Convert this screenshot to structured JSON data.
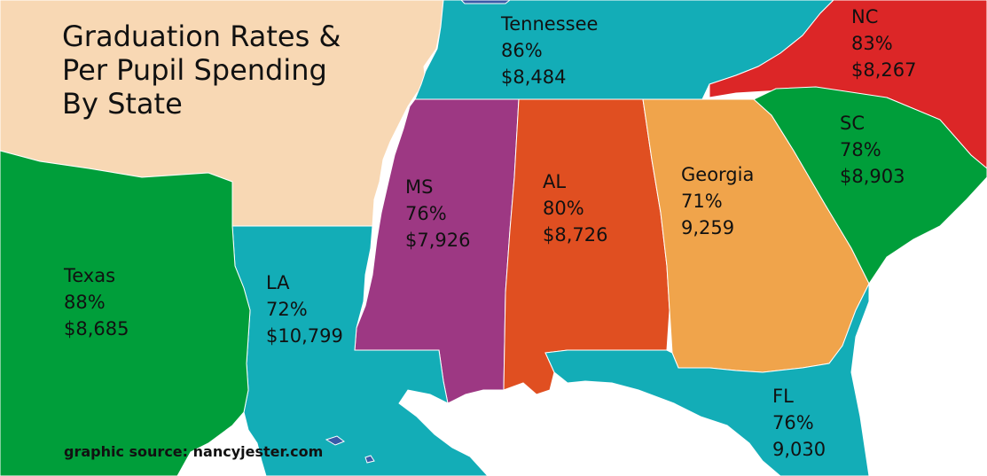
{
  "title": {
    "line1": "Graduation Rates &",
    "line2": "Per Pupil Spending",
    "line3": "By State"
  },
  "source": "graphic source: nancyjester.com",
  "colors": {
    "background": "#ffffff",
    "texas": "#009e3a",
    "louisiana": "#13adb7",
    "mississippi": "#9d3883",
    "alabama": "#e04f21",
    "georgia": "#f0a44b",
    "florida": "#13adb7",
    "tennessee": "#13adb7",
    "north_carolina": "#dc2627",
    "south_carolina": "#009e3a",
    "arkansas_region": "#f8d8b4",
    "lake": "#3a5aa8"
  },
  "states": {
    "texas": {
      "name": "Texas",
      "rate": "88%",
      "spending": "$8,685"
    },
    "louisiana": {
      "name": "LA",
      "rate": "72%",
      "spending": "$10,799"
    },
    "mississippi": {
      "name": "MS",
      "rate": "76%",
      "spending": "$7,926"
    },
    "alabama": {
      "name": "AL",
      "rate": "80%",
      "spending": "$8,726"
    },
    "georgia": {
      "name": "Georgia",
      "rate": "71%",
      "spending": "9,259"
    },
    "florida": {
      "name": "FL",
      "rate": "76%",
      "spending": "9,030"
    },
    "tennessee": {
      "name": "Tennessee",
      "rate": "86%",
      "spending": "$8,484"
    },
    "north_carolina": {
      "name": "NC",
      "rate": "83%",
      "spending": "$8,267"
    },
    "south_carolina": {
      "name": "SC",
      "rate": "78%",
      "spending": "$8,903"
    }
  }
}
